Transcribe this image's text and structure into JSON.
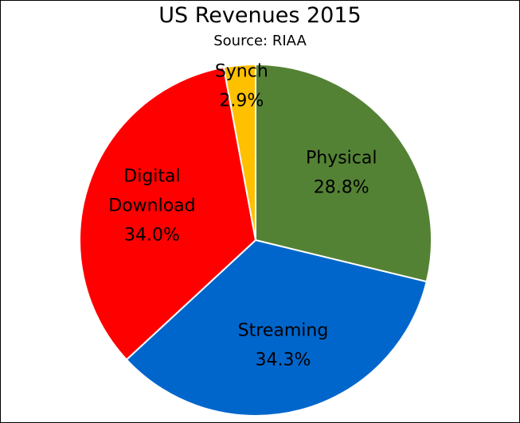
{
  "chart_data": {
    "type": "pie",
    "title": "US Revenues 2015",
    "subtitle": "Source: RIAA",
    "slices": [
      {
        "name": "Physical",
        "label_lines": [
          "Physical"
        ],
        "value": 28.8,
        "value_label": "28.8%",
        "color": "#548235"
      },
      {
        "name": "Streaming",
        "label_lines": [
          "Streaming"
        ],
        "value": 34.3,
        "value_label": "34.3%",
        "color": "#0066CC"
      },
      {
        "name": "Digital Download",
        "label_lines": [
          "Digital",
          "Download"
        ],
        "value": 34.0,
        "value_label": "34.0%",
        "color": "#FF0000"
      },
      {
        "name": "Synch",
        "label_lines": [
          "Synch"
        ],
        "value": 2.9,
        "value_label": "2.9%",
        "color": "#FFC000"
      }
    ],
    "start_angle": "12 o'clock",
    "direction": "clockwise",
    "legend": "none"
  }
}
